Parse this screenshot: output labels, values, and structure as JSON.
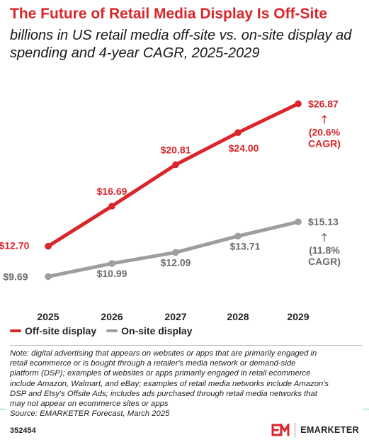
{
  "chart_data": {
    "type": "line",
    "title": "The Future of Retail Media Display Is Off-Site",
    "subtitle": "billions in US retail media off-site vs. on-site display ad spending and 4-year CAGR, 2025-2029",
    "x": [
      "2025",
      "2026",
      "2027",
      "2028",
      "2029"
    ],
    "series": [
      {
        "name": "Off-site display",
        "color": "#d9262b",
        "values": [
          12.7,
          16.69,
          20.81,
          24.0,
          26.87
        ],
        "labels": [
          "$12.70",
          "$16.69",
          "$20.81",
          "$24.00",
          "$26.87"
        ],
        "cagr_lines": [
          "(20.6%",
          "CAGR)"
        ]
      },
      {
        "name": "On-site display",
        "color": "#9e9e9e",
        "values": [
          9.69,
          10.99,
          12.09,
          13.71,
          15.13
        ],
        "labels": [
          "$9.69",
          "$10.99",
          "$12.09",
          "$13.71",
          "$15.13"
        ],
        "cagr_lines": [
          "(11.8%",
          "CAGR)"
        ]
      }
    ],
    "arrow_glyph": "↑",
    "grid": false
  },
  "note_lines": [
    "Note: digital advertising that appears on websites or apps that are primarily engaged in",
    "retail ecommerce or is bought through a retailer's media network or demand-side",
    "platform (DSP); examples of websites or apps primarily engaged in retail ecommerce",
    "include Amazon, Walmart, and eBay; examples of retail media networks include Amazon's",
    "DSP and Etsy's Offsite Ads; includes ads purchased through retail media networks that",
    "may not appear on ecommerce sites or apps"
  ],
  "source": "Source: EMARKETER Forecast, March 2025",
  "chart_id": "352454",
  "brand": {
    "mark": "EM",
    "name": "EMARKETER",
    "color": "#d9262b"
  }
}
